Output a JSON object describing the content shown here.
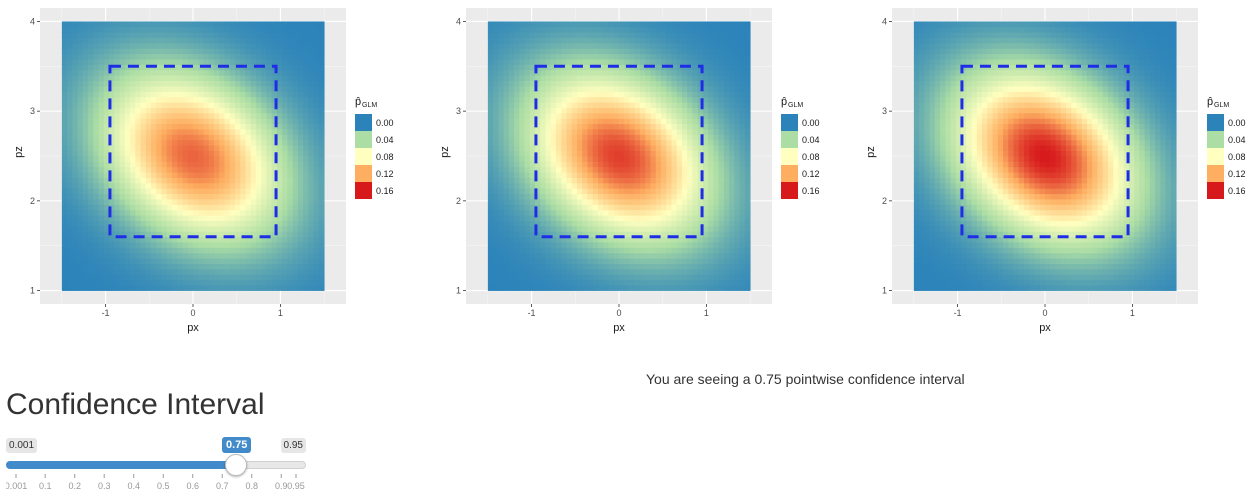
{
  "chart_data": [
    {
      "type": "heatmap",
      "xlabel": "px",
      "ylabel": "pz",
      "xlim": [
        -1.5,
        1.5
      ],
      "ylim": [
        1,
        4
      ],
      "x_ticks": [
        "-1",
        "0",
        "1"
      ],
      "y_ticks": [
        "1",
        "2",
        "3",
        "4"
      ],
      "grid": true,
      "legend": {
        "title": "p̂",
        "title_subscript": "GLM",
        "placement": "right",
        "breaks": [
          "0.00",
          "0.04",
          "0.08",
          "0.12",
          "0.16"
        ],
        "colors": [
          "#2b83ba",
          "#abdda4",
          "#ffffbf",
          "#fdae61",
          "#d7191c"
        ]
      },
      "strike_zone": {
        "x": [
          -0.95,
          0.95
        ],
        "z": [
          1.6,
          3.5
        ],
        "color": "#1f2ee6",
        "style": "dashed"
      },
      "peak": {
        "x": 0.0,
        "z": 2.5,
        "value": 0.14
      }
    },
    {
      "type": "heatmap",
      "xlabel": "px",
      "ylabel": "pz",
      "xlim": [
        -1.5,
        1.5
      ],
      "ylim": [
        1,
        4
      ],
      "x_ticks": [
        "-1",
        "0",
        "1"
      ],
      "y_ticks": [
        "1",
        "2",
        "3",
        "4"
      ],
      "grid": true,
      "legend": {
        "title": "p̂",
        "title_subscript": "GLM",
        "placement": "right",
        "breaks": [
          "0.00",
          "0.04",
          "0.08",
          "0.12",
          "0.16"
        ],
        "colors": [
          "#2b83ba",
          "#abdda4",
          "#ffffbf",
          "#fdae61",
          "#d7191c"
        ]
      },
      "strike_zone": {
        "x": [
          -0.95,
          0.95
        ],
        "z": [
          1.6,
          3.5
        ],
        "color": "#1f2ee6",
        "style": "dashed"
      },
      "peak": {
        "x": 0.0,
        "z": 2.5,
        "value": 0.15
      }
    },
    {
      "type": "heatmap",
      "xlabel": "px",
      "ylabel": "pz",
      "xlim": [
        -1.5,
        1.5
      ],
      "ylim": [
        1,
        4
      ],
      "x_ticks": [
        "-1",
        "0",
        "1"
      ],
      "y_ticks": [
        "1",
        "2",
        "3",
        "4"
      ],
      "grid": true,
      "legend": {
        "title": "p̂",
        "title_subscript": "GLM",
        "placement": "right",
        "breaks": [
          "0.00",
          "0.04",
          "0.08",
          "0.12",
          "0.16"
        ],
        "colors": [
          "#2b83ba",
          "#abdda4",
          "#ffffbf",
          "#fdae61",
          "#d7191c"
        ]
      },
      "strike_zone": {
        "x": [
          -0.95,
          0.95
        ],
        "z": [
          1.6,
          3.5
        ],
        "color": "#1f2ee6",
        "style": "dashed"
      },
      "peak": {
        "x": 0.0,
        "z": 2.5,
        "value": 0.16
      }
    }
  ],
  "controls": {
    "heading": "Confidence Interval",
    "slider": {
      "min_label": "0.001",
      "max_label": "0.95",
      "value_label": "0.75",
      "min": 0.001,
      "max": 0.95,
      "value": 0.75,
      "tick_labels": [
        "0.001",
        "0.1",
        "0.2",
        "0.3",
        "0.4",
        "0.5",
        "0.6",
        "0.7",
        "0.8",
        "0.9",
        "0.95"
      ],
      "tick_values": [
        0.001,
        0.1,
        0.2,
        0.3,
        0.4,
        0.5,
        0.6,
        0.7,
        0.8,
        0.9,
        0.95
      ],
      "accent": "#428bca"
    }
  },
  "output": {
    "text": "You are seeing a 0.75 pointwise confidence interval"
  }
}
